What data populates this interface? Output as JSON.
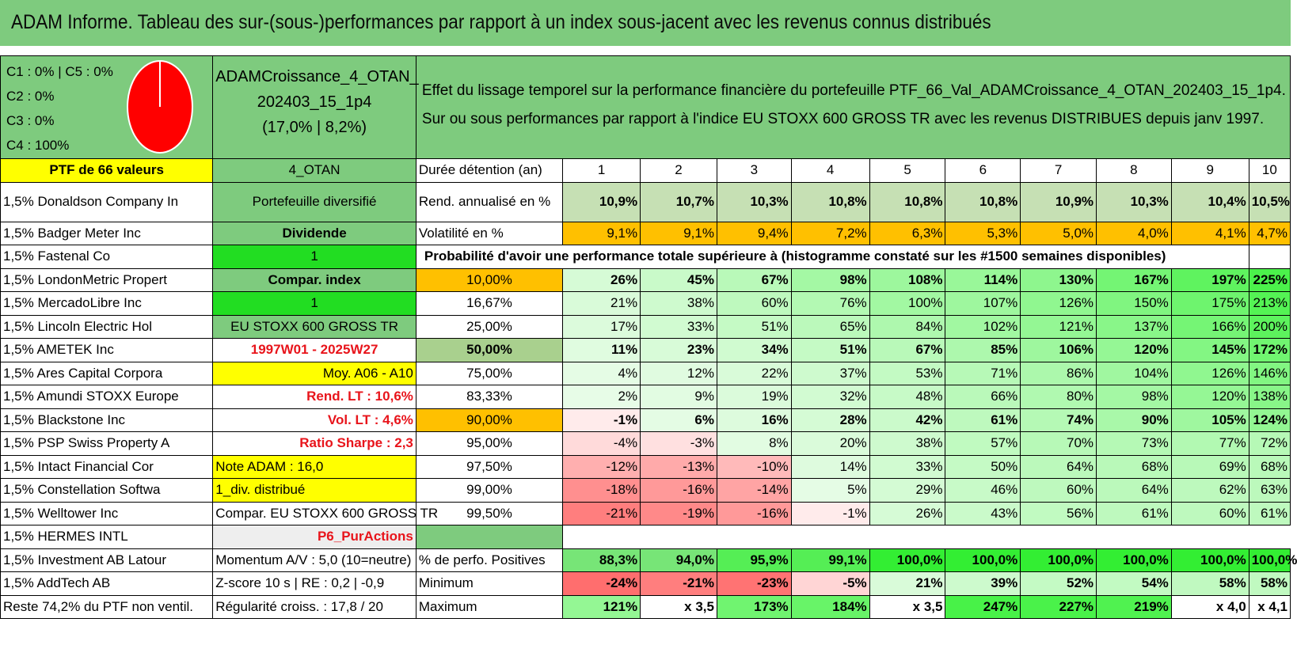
{
  "title": "ADAM Informe. Tableau des sur-(sous-)performances par rapport à un index sous-jacent avec les revenus connus distribués",
  "colors": {
    "header_green": "#7ecb7e",
    "yellow": "#ffff00",
    "bright_green": "#22dd22",
    "orange": "#ffc000",
    "red_text": "#e8141b",
    "pie_red": "#ff0000"
  },
  "pie": {
    "legend": [
      "C1 : 0% | C5 : 0%",
      "C2 : 0%",
      "C3 : 0%",
      "C4 : 100%"
    ],
    "slices": [
      {
        "name": "C1",
        "value": 0
      },
      {
        "name": "C2",
        "value": 0
      },
      {
        "name": "C3",
        "value": 0
      },
      {
        "name": "C4",
        "value": 100
      },
      {
        "name": "C5",
        "value": 0
      }
    ]
  },
  "portfolio": {
    "name_line1": "ADAMCroissance_4_OTAN_",
    "name_line2": "202403_15_1p4",
    "name_line3": "(17,0% | 8,2%)"
  },
  "description": {
    "line1": "Effet du lissage temporel sur la performance financière du portefeuille PTF_66_Val_ADAMCroissance_4_OTAN_202403_15_1p4.",
    "line2": "Sur ou sous performances par rapport à l'indice EU STOXX 600 GROSS TR avec les revenus DISTRIBUES depuis janv 1997."
  },
  "ptf_label": "PTF de 66 valeurs",
  "ptf_code": "4_OTAN",
  "holdings": [
    "1,5% Donaldson Company In",
    "1,5% Badger Meter Inc",
    "1,5% Fastenal Co",
    "1,5% LondonMetric Propert",
    "1,5% MercadoLibre Inc",
    "1,5% Lincoln Electric Hol",
    "1,5% AMETEK Inc",
    "1,5% Ares Capital Corpora",
    "1,5% Amundi STOXX Europe",
    "1,5% Blackstone Inc",
    "1,5% PSP Swiss Property A",
    "1,5% Intact Financial Cor",
    "1,5% Constellation Softwa",
    "1,5% Welltower Inc",
    "1,5% HERMES INTL",
    "1,5% Investment AB Latour",
    "1,5% AddTech AB",
    "Reste 74,2% du PTF non ventil."
  ],
  "info": [
    "Portefeuille diversifié",
    "Dividende",
    "1",
    "Compar. index",
    "1",
    "EU STOXX 600 GROSS TR",
    "1997W01 - 2025W27",
    "Moy. A06 - A10",
    "Rend. LT : 10,6%",
    "Vol. LT : 4,6%",
    "Ratio Sharpe : 2,3",
    "Note ADAM : 16,0",
    "1_div. distribué",
    "Compar. EU STOXX 600 GROSS TR",
    "P6_PurActions",
    "Momentum A/V : 5,0 (10=neutre)",
    "Z-score 10 s | RE : 0,2 | -0,9",
    "Régularité croiss. : 17,8 / 20"
  ],
  "duration_label": "Durée détention (an)",
  "years": [
    "1",
    "2",
    "3",
    "4",
    "5",
    "6",
    "7",
    "8",
    "9",
    "10"
  ],
  "rend_label": "Rend. annualisé en %",
  "rend": [
    "10,9%",
    "10,7%",
    "10,3%",
    "10,8%",
    "10,8%",
    "10,8%",
    "10,9%",
    "10,3%",
    "10,4%",
    "10,5%"
  ],
  "vol_label": "Volatilité en %",
  "vol": [
    "9,1%",
    "9,1%",
    "9,4%",
    "7,2%",
    "6,3%",
    "5,3%",
    "5,0%",
    "4,0%",
    "4,1%",
    "4,7%"
  ],
  "prob_title": "Probabilité d'avoir une performance totale supérieure à (histogramme constaté sur les #1500 semaines disponibles)",
  "percentile_rows": [
    {
      "label": "10,00%",
      "values": [
        "26%",
        "45%",
        "67%",
        "98%",
        "108%",
        "114%",
        "130%",
        "167%",
        "197%",
        "225%"
      ]
    },
    {
      "label": "16,67%",
      "values": [
        "21%",
        "38%",
        "60%",
        "76%",
        "100%",
        "107%",
        "126%",
        "150%",
        "175%",
        "213%"
      ]
    },
    {
      "label": "25,00%",
      "values": [
        "17%",
        "33%",
        "51%",
        "65%",
        "84%",
        "102%",
        "121%",
        "137%",
        "166%",
        "200%"
      ]
    },
    {
      "label": "50,00%",
      "values": [
        "11%",
        "23%",
        "34%",
        "51%",
        "67%",
        "85%",
        "106%",
        "120%",
        "145%",
        "172%"
      ]
    },
    {
      "label": "75,00%",
      "values": [
        "4%",
        "12%",
        "22%",
        "37%",
        "53%",
        "71%",
        "86%",
        "104%",
        "126%",
        "146%"
      ]
    },
    {
      "label": "83,33%",
      "values": [
        "2%",
        "9%",
        "19%",
        "32%",
        "48%",
        "66%",
        "80%",
        "98%",
        "120%",
        "138%"
      ]
    },
    {
      "label": "90,00%",
      "values": [
        "-1%",
        "6%",
        "16%",
        "28%",
        "42%",
        "61%",
        "74%",
        "90%",
        "105%",
        "124%"
      ]
    },
    {
      "label": "95,00%",
      "values": [
        "-4%",
        "-3%",
        "8%",
        "20%",
        "38%",
        "57%",
        "70%",
        "73%",
        "77%",
        "72%"
      ]
    },
    {
      "label": "97,50%",
      "values": [
        "-12%",
        "-13%",
        "-10%",
        "14%",
        "33%",
        "50%",
        "64%",
        "68%",
        "69%",
        "68%"
      ]
    },
    {
      "label": "99,00%",
      "values": [
        "-18%",
        "-16%",
        "-14%",
        "5%",
        "29%",
        "46%",
        "60%",
        "64%",
        "62%",
        "63%"
      ]
    },
    {
      "label": "99,50%",
      "values": [
        "-21%",
        "-19%",
        "-16%",
        "-1%",
        "26%",
        "43%",
        "56%",
        "61%",
        "60%",
        "61%"
      ]
    }
  ],
  "positives_label": "% de perfo. Positives",
  "positives": [
    "88,3%",
    "94,0%",
    "95,9%",
    "99,1%",
    "100,0%",
    "100,0%",
    "100,0%",
    "100,0%",
    "100,0%",
    "100,0%"
  ],
  "minimum_label": "Minimum",
  "minimum": [
    "-24%",
    "-21%",
    "-23%",
    "-5%",
    "21%",
    "39%",
    "52%",
    "54%",
    "58%",
    "58%"
  ],
  "maximum_label": "Maximum",
  "maximum": [
    "121%",
    "x 3,5",
    "173%",
    "184%",
    "x 3,5",
    "247%",
    "227%",
    "219%",
    "x 4,0",
    "x 4,1"
  ]
}
